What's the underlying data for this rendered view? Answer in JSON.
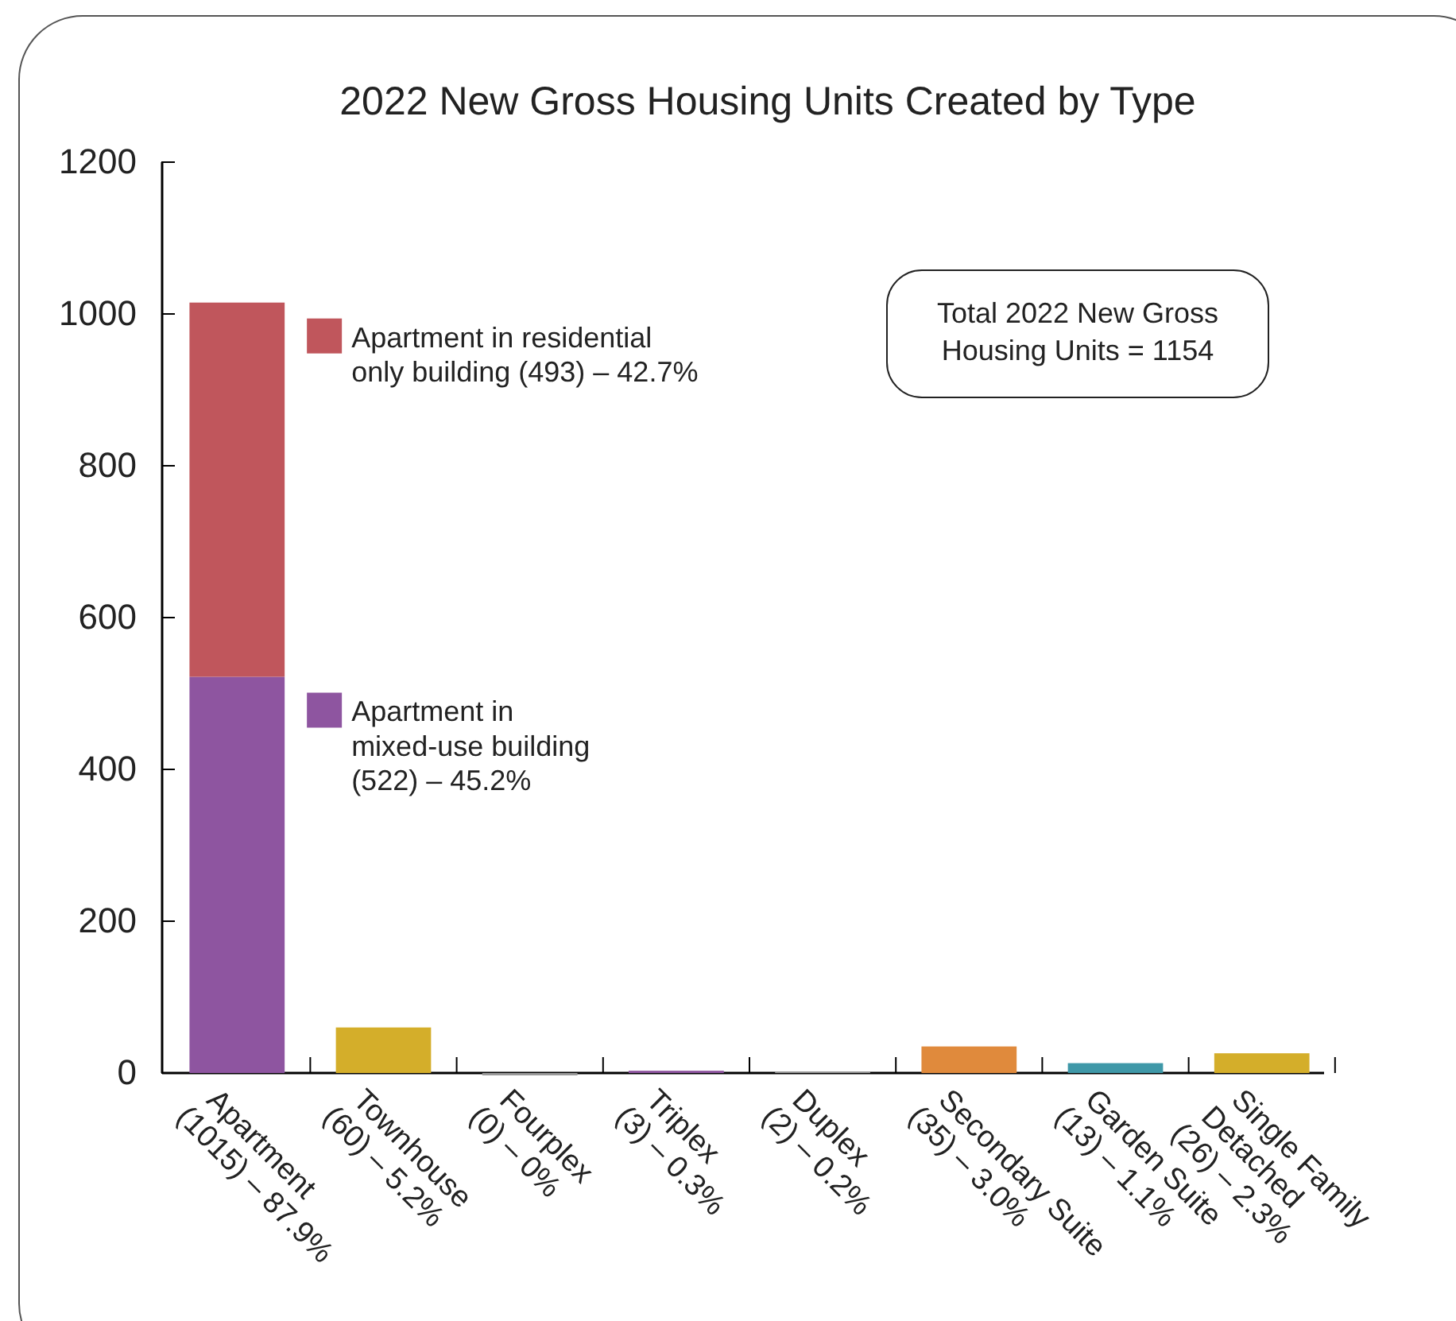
{
  "chart_data": {
    "type": "bar",
    "title": "2022 New Gross Housing Units Created by Type",
    "categories": [
      "Apartment\n(1015) – 87.9%",
      "Townhouse\n(60) – 5.2%",
      "Fourplex\n(0) – 0%",
      "Triplex\n(3) – 0.3%",
      "Duplex\n(2) – 0.2%",
      "Secondary Suite\n(35) – 3.0%",
      "Garden Suite\n(13) – 1.1%",
      "Single Family\nDetached\n(26) – 2.3%"
    ],
    "stacked": true,
    "series": [
      {
        "name": "Apartment in\nmixed-use building\n(522) – 45.2%",
        "color": "#8e55a0",
        "values": [
          522,
          null,
          null,
          null,
          null,
          null,
          null,
          null
        ]
      },
      {
        "name": "Apartment in residential\nonly building (493) – 42.7%",
        "color": "#c0565c",
        "values": [
          493,
          null,
          null,
          null,
          null,
          null,
          null,
          null
        ]
      },
      {
        "colors": [
          null,
          "#d4ae2a",
          "#9a9a9a",
          "#8e55a0",
          "#9a9a9a",
          "#e08a3c",
          "#3f98a8",
          "#d4ae2a"
        ],
        "values": [
          null,
          60,
          0,
          3,
          2,
          35,
          13,
          26
        ]
      }
    ],
    "legend": "top left",
    "ylim": [
      0,
      1200
    ],
    "yticks": [
      0,
      200,
      400,
      600,
      800,
      1000,
      1200
    ],
    "annotations": [
      "Total 2022 New Gross\nHousing Units = 1154"
    ]
  }
}
